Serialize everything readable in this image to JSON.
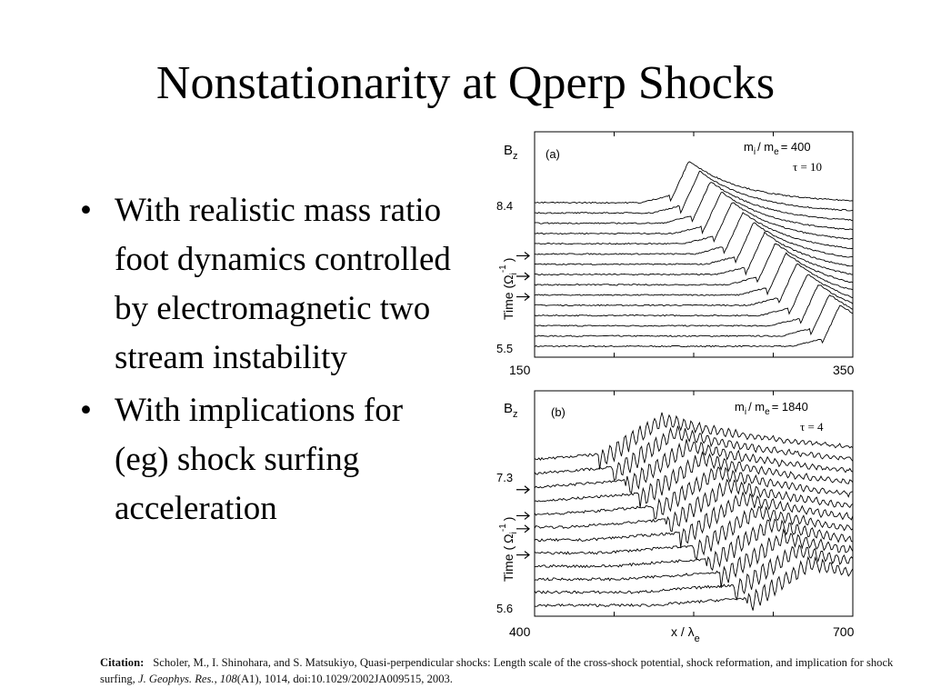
{
  "title": "Nonstationarity at Qperp Shocks",
  "bullets": [
    {
      "marker": "•",
      "text": "With realistic mass ratio foot dynamics controlled by electromagnetic two stream instability"
    },
    {
      "marker": "•",
      "text": "With implications for (eg) shock surfing acceleration"
    }
  ],
  "citation": {
    "label": "Citation:",
    "authors": "Scholer, M., I. Shinohara, and S. Matsukiyo, Quasi-perpendicular shocks: Length scale of the cross-shock potential, shock reformation, and implication for shock surfing,",
    "journal": "J. Geophys. Res.",
    "volume": "108",
    "details": "(A1), 1014, doi:10.1029/2002JA009515, 2003.",
    "sep1": ", "
  },
  "chart_data": [
    {
      "type": "line",
      "panel_label": "(a)",
      "ylabel_var": "B",
      "ylabel_sub": "z",
      "mass_ratio_label": "m",
      "mass_ratio_sub_i": "i",
      "mass_ratio_sep": "/ m",
      "mass_ratio_sub_e": "e",
      "mass_ratio_value": "= 400",
      "tau_label": "τ = 10",
      "time_axis_label": "Time (Ω",
      "time_axis_sub": "i",
      "time_axis_sup": "-1",
      "time_axis_close": ")",
      "time_top": "8.4",
      "time_bottom": "5.5",
      "xlim": [
        150,
        350
      ],
      "x_ticks": [
        "150",
        "350"
      ],
      "n_traces": 15,
      "arrows": 3,
      "shock_x_bottom": 330,
      "shock_x_top": 235,
      "reformation": true
    },
    {
      "type": "line",
      "panel_label": "(b)",
      "ylabel_var": "B",
      "ylabel_sub": "z",
      "mass_ratio_label": "m",
      "mass_ratio_sub_i": "i",
      "mass_ratio_sep": "/ m",
      "mass_ratio_sub_e": "e",
      "mass_ratio_value": "= 1840",
      "tau_label": "τ = 4",
      "time_axis_label": "Time (",
      "time_axis_greek": "Ω",
      "time_axis_sub": "i",
      "time_axis_sup": "-1",
      "time_axis_close": ")",
      "time_top": "7.3",
      "time_bottom": "5.6",
      "xlim": [
        400,
        700
      ],
      "x_ticks": [
        "400",
        "700"
      ],
      "xlabel": "x / λ",
      "xlabel_sub": "e",
      "n_traces": 12,
      "arrows": 4,
      "shock_x_bottom": 600,
      "shock_x_top": 460,
      "reformation": true
    }
  ]
}
